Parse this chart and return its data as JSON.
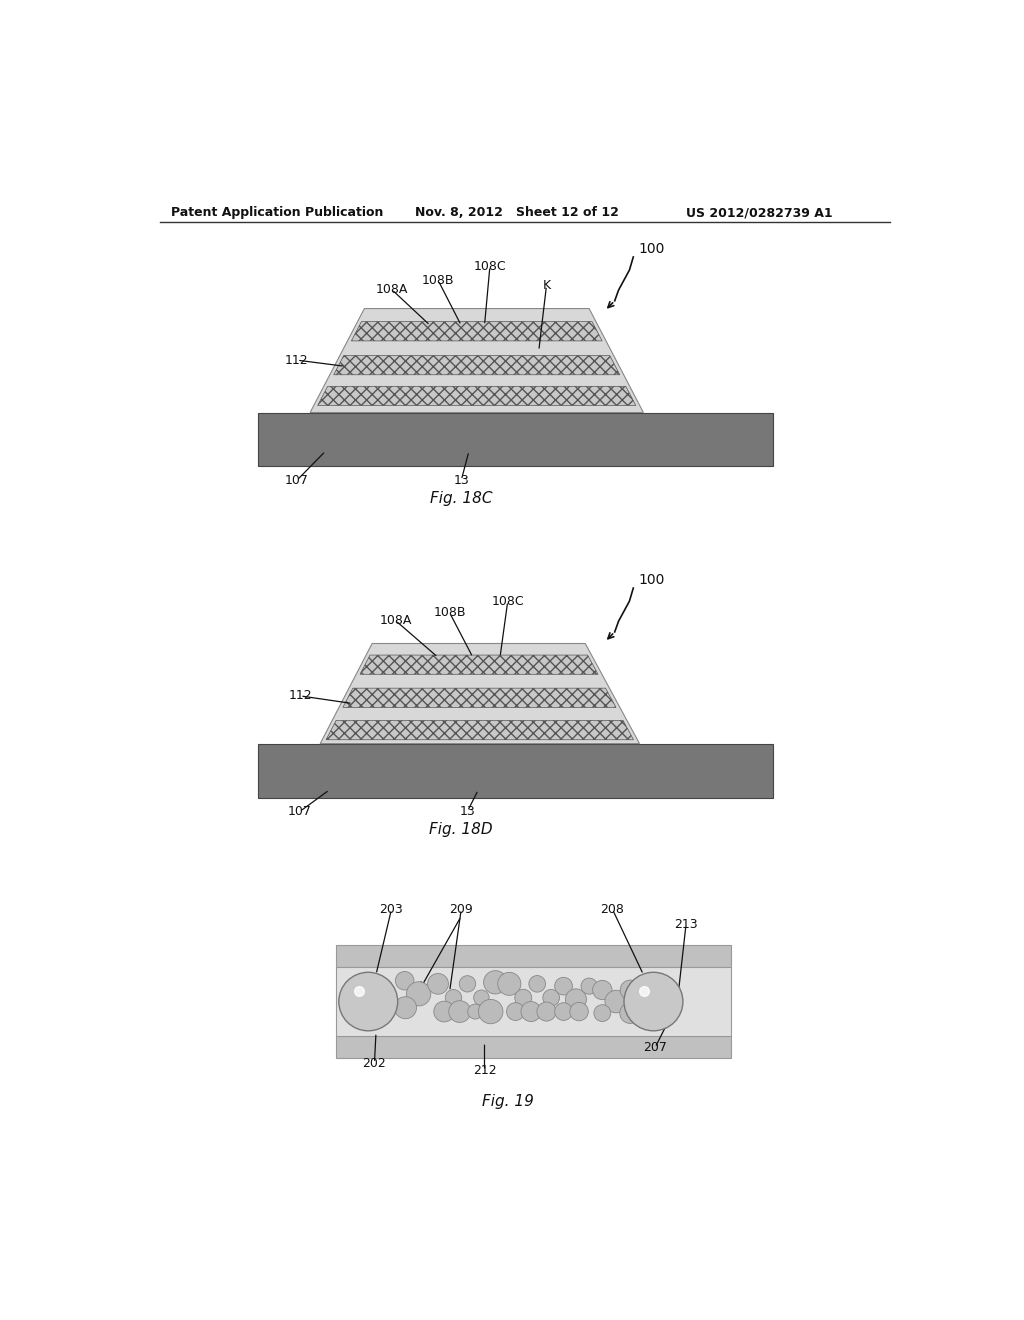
{
  "header_left": "Patent Application Publication",
  "header_mid": "Nov. 8, 2012   Sheet 12 of 12",
  "header_right": "US 2012/0282739 A1",
  "fig18c_label": "Fig. 18C",
  "fig18d_label": "Fig. 18D",
  "fig19_label": "Fig. 19",
  "bg_color": "#ffffff"
}
